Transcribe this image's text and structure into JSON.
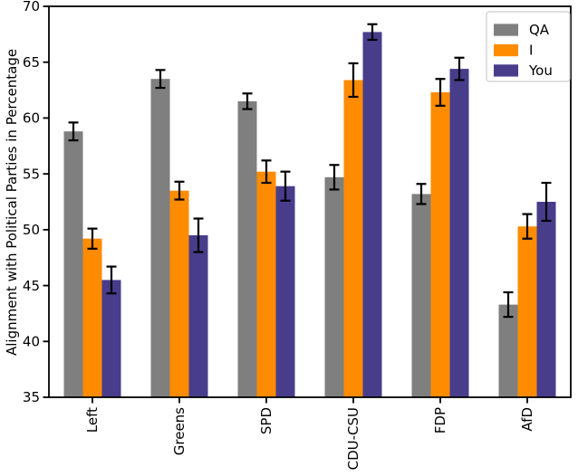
{
  "chart_data": {
    "type": "bar",
    "title": "",
    "xlabel": "",
    "ylabel": "Alignment with Political Parties in Percentage",
    "ylim": [
      35,
      70
    ],
    "yticks": [
      35,
      40,
      45,
      50,
      55,
      60,
      65,
      70
    ],
    "categories": [
      "Left",
      "Greens",
      "SPD",
      "CDU-CSU",
      "FDP",
      "AfD"
    ],
    "xticklabel_rotation": 90,
    "grid": false,
    "error_bars": true,
    "error_color": "#000000",
    "series": [
      {
        "name": "QA",
        "color": "#7f7f7f",
        "values": [
          58.8,
          63.5,
          61.5,
          54.7,
          53.2,
          43.3
        ],
        "errors": [
          0.8,
          0.8,
          0.7,
          1.1,
          0.9,
          1.1
        ]
      },
      {
        "name": "I",
        "color": "#ff8c00",
        "values": [
          49.2,
          53.5,
          55.2,
          63.4,
          62.3,
          50.3
        ],
        "errors": [
          0.9,
          0.8,
          1.0,
          1.5,
          1.2,
          1.1
        ]
      },
      {
        "name": "You",
        "color": "#483d8b",
        "values": [
          45.5,
          49.5,
          53.9,
          67.7,
          64.4,
          52.5
        ],
        "errors": [
          1.2,
          1.5,
          1.3,
          0.7,
          1.0,
          1.7
        ]
      }
    ],
    "legend": {
      "position": "upper right",
      "labels": [
        "QA",
        "I",
        "You"
      ],
      "border_color": "#cccccc",
      "background": "#ffffff"
    }
  },
  "colors": {
    "axis": "#000000",
    "background": "#ffffff"
  }
}
